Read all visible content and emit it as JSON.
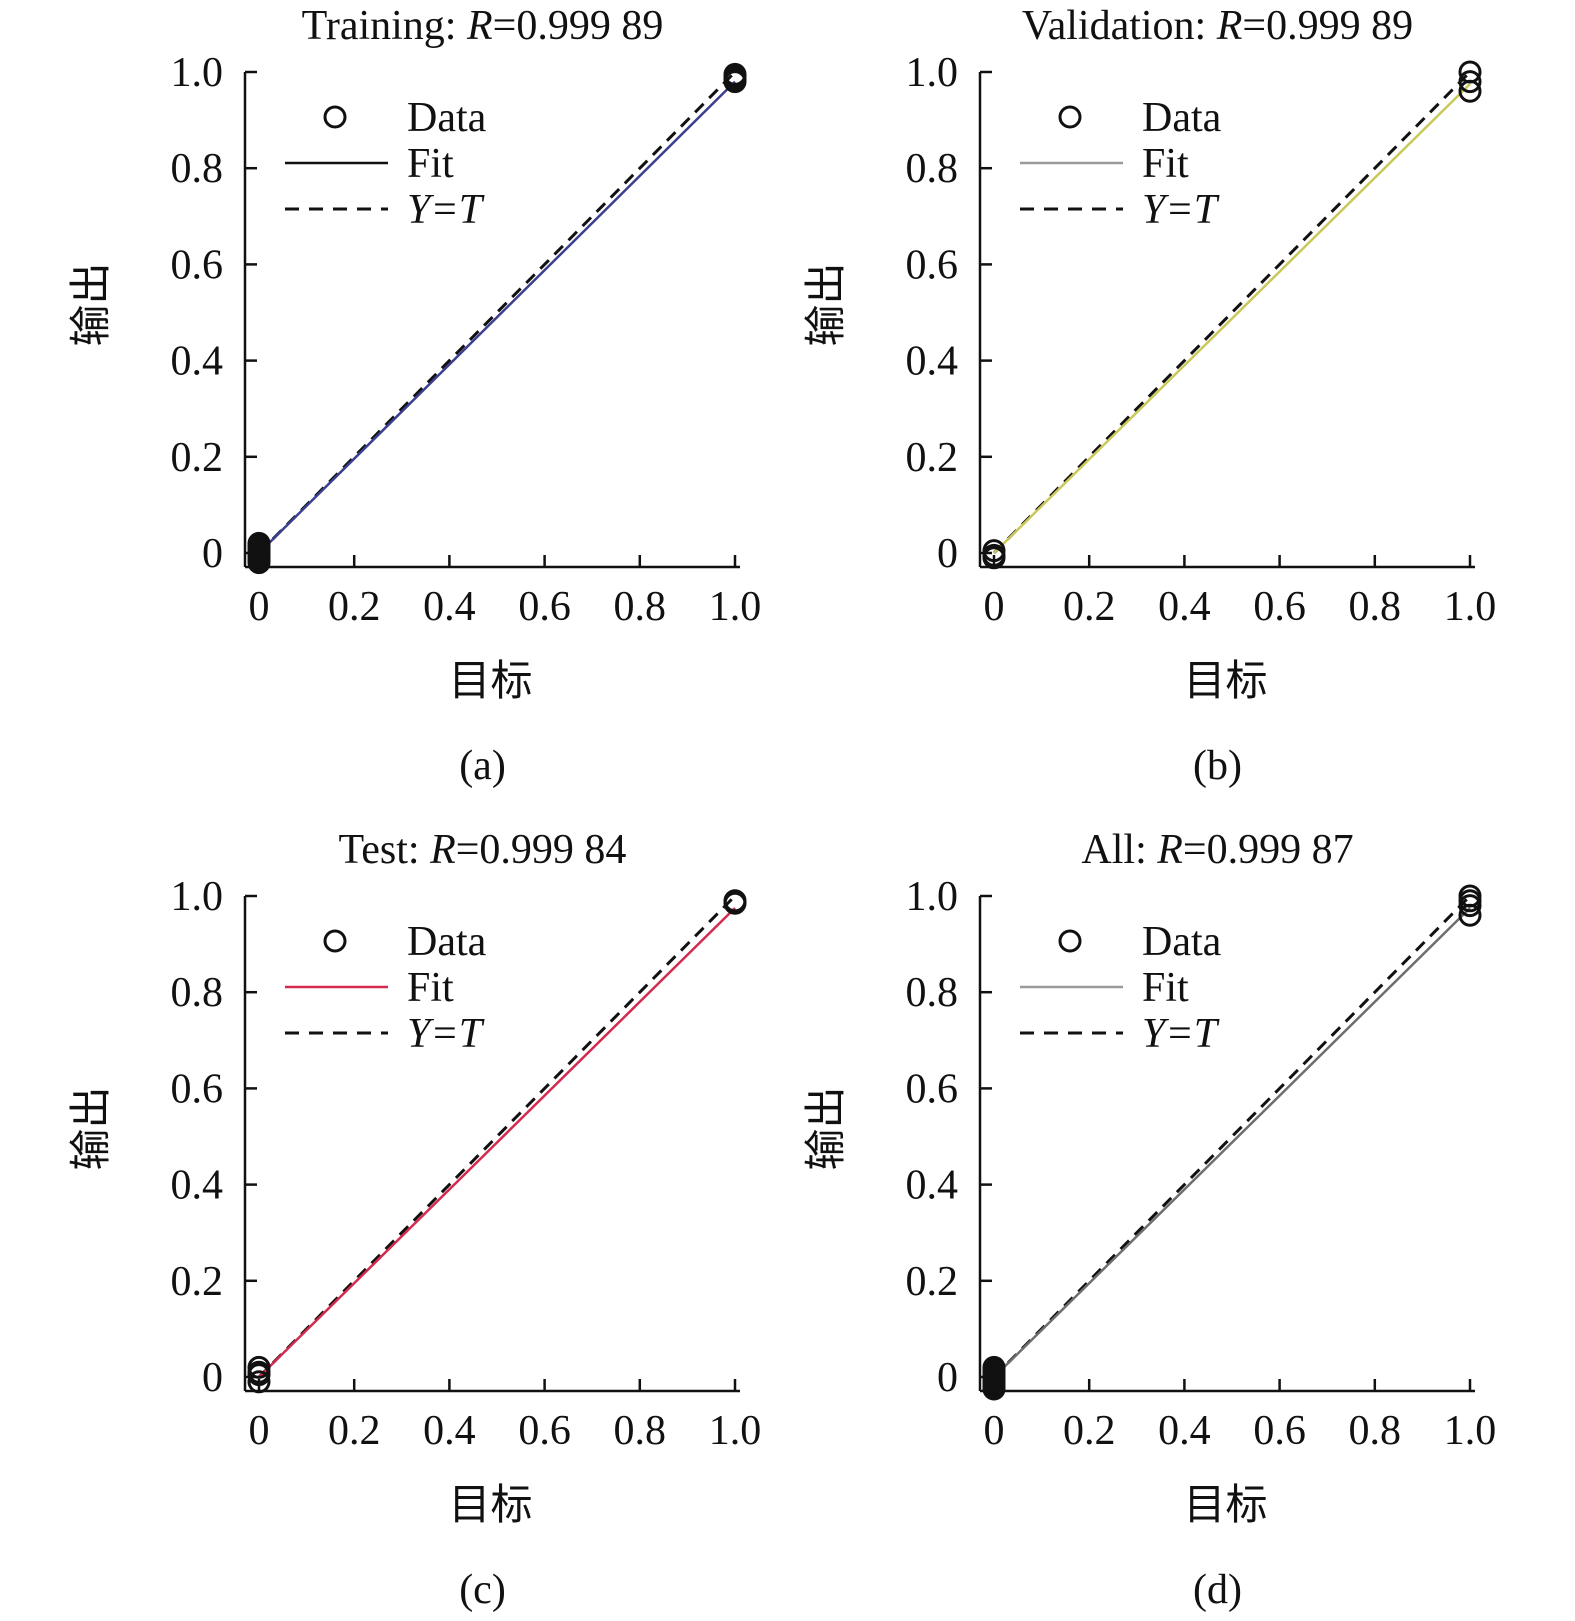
{
  "chart_data": [
    {
      "type": "scatter",
      "panel_label": "(a)",
      "title": {
        "prefix": "Training: ",
        "var": "R",
        "value": "=0.999 89"
      },
      "xlabel": "目标",
      "ylabel": "输出",
      "xlim": [
        0,
        1.0
      ],
      "ylim": [
        0,
        1.0
      ],
      "xticks": [
        "0",
        "0.2",
        "0.4",
        "0.6",
        "0.8",
        "1.0"
      ],
      "yticks": [
        "0",
        "0.2",
        "0.4",
        "0.6",
        "0.8",
        "1.0"
      ],
      "legend": {
        "data": "Data",
        "fit": "Fit",
        "yt": "Y=T",
        "placement": "top-left"
      },
      "fit_color": "#3b3f8f",
      "fit": {
        "slope": 0.98,
        "intercept": 0.0
      },
      "points": [
        [
          0,
          0.0
        ],
        [
          0,
          -0.005
        ],
        [
          0,
          -0.01
        ],
        [
          0,
          0.01
        ],
        [
          0,
          0.02
        ],
        [
          0,
          -0.02
        ],
        [
          0,
          0.005
        ],
        [
          0,
          0.015
        ],
        [
          0,
          -0.015
        ],
        [
          1,
          0.99
        ],
        [
          1,
          0.985
        ],
        [
          1,
          0.98
        ],
        [
          1,
          0.995
        ]
      ]
    },
    {
      "type": "scatter",
      "panel_label": "(b)",
      "title": {
        "prefix": "Validation: ",
        "var": "R",
        "value": "=0.999 89"
      },
      "xlabel": "目标",
      "ylabel": "输出",
      "xlim": [
        0,
        1.0
      ],
      "ylim": [
        0,
        1.0
      ],
      "xticks": [
        "0",
        "0.2",
        "0.4",
        "0.6",
        "0.8",
        "1.0"
      ],
      "yticks": [
        "0",
        "0.2",
        "0.4",
        "0.6",
        "0.8",
        "1.0"
      ],
      "legend": {
        "data": "Data",
        "fit": "Fit",
        "yt": "Y=T",
        "placement": "top-left"
      },
      "fit_color": "#c9c95a",
      "fit": {
        "slope": 0.975,
        "intercept": 0.0
      },
      "points": [
        [
          0,
          -0.005
        ],
        [
          0,
          0.005
        ],
        [
          0,
          -0.01
        ],
        [
          1,
          1.0
        ],
        [
          1,
          0.98
        ],
        [
          1,
          0.96
        ]
      ]
    },
    {
      "type": "scatter",
      "panel_label": "(c)",
      "title": {
        "prefix": "Test: ",
        "var": "R",
        "value": "=0.999 84"
      },
      "xlabel": "目标",
      "ylabel": "输出",
      "xlim": [
        0,
        1.0
      ],
      "ylim": [
        0,
        1.0
      ],
      "xticks": [
        "0",
        "0.2",
        "0.4",
        "0.6",
        "0.8",
        "1.0"
      ],
      "yticks": [
        "0",
        "0.2",
        "0.4",
        "0.6",
        "0.8",
        "1.0"
      ],
      "legend": {
        "data": "Data",
        "fit": "Fit",
        "yt": "Y=T",
        "placement": "top-left"
      },
      "fit_color": "#d42a4f",
      "fit": {
        "slope": 0.975,
        "intercept": 0.0
      },
      "points": [
        [
          0,
          0.02
        ],
        [
          0,
          0.005
        ],
        [
          0,
          -0.01
        ],
        [
          0,
          0.01
        ],
        [
          1,
          0.99
        ],
        [
          1,
          0.985
        ]
      ]
    },
    {
      "type": "scatter",
      "panel_label": "(d)",
      "title": {
        "prefix": "All: ",
        "var": "R",
        "value": "=0.999 87"
      },
      "xlabel": "目标",
      "ylabel": "输出",
      "xlim": [
        0,
        1.0
      ],
      "ylim": [
        0,
        1.0
      ],
      "xticks": [
        "0",
        "0.2",
        "0.4",
        "0.6",
        "0.8",
        "1.0"
      ],
      "yticks": [
        "0",
        "0.2",
        "0.4",
        "0.6",
        "0.8",
        "1.0"
      ],
      "legend": {
        "data": "Data",
        "fit": "Fit",
        "yt": "Y=T",
        "placement": "top-left"
      },
      "fit_color": "#6e6e6e",
      "fit": {
        "slope": 0.975,
        "intercept": 0.0
      },
      "points": [
        [
          0,
          0.0
        ],
        [
          0,
          -0.005
        ],
        [
          0,
          -0.01
        ],
        [
          0,
          0.01
        ],
        [
          0,
          0.02
        ],
        [
          0,
          -0.02
        ],
        [
          0,
          0.005
        ],
        [
          0,
          0.015
        ],
        [
          0,
          -0.015
        ],
        [
          0,
          -0.025
        ],
        [
          1,
          1.0
        ],
        [
          1,
          0.99
        ],
        [
          1,
          0.98
        ],
        [
          1,
          0.96
        ]
      ]
    }
  ]
}
